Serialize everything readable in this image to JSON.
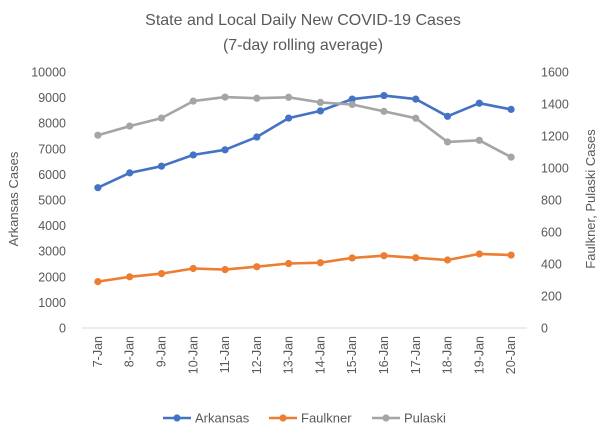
{
  "chart_data": {
    "type": "line",
    "title": "State and Local Daily New COVID-19 Cases",
    "subtitle": "(7-day rolling average)",
    "categories": [
      "7-Jan",
      "8-Jan",
      "9-Jan",
      "10-Jan",
      "11-Jan",
      "12-Jan",
      "13-Jan",
      "14-Jan",
      "15-Jan",
      "16-Jan",
      "17-Jan",
      "18-Jan",
      "19-Jan",
      "20-Jan"
    ],
    "y_left": {
      "label": "Arkansas Cases",
      "min": 0,
      "max": 10000,
      "step": 1000,
      "ticks": [
        "0",
        "1000",
        "2000",
        "3000",
        "4000",
        "5000",
        "6000",
        "7000",
        "8000",
        "9000",
        "10000"
      ]
    },
    "y_right": {
      "label": "Faulkner, Pulaski Cases",
      "min": 0,
      "max": 1600,
      "step": 200,
      "ticks": [
        "0",
        "200",
        "400",
        "600",
        "800",
        "1000",
        "1200",
        "1400",
        "1600"
      ]
    },
    "grid": false,
    "legend_position": "bottom",
    "series": [
      {
        "name": "Arkansas",
        "axis": "left",
        "color": "#4472C4",
        "values": [
          5480,
          6060,
          6320,
          6760,
          6960,
          7460,
          8200,
          8480,
          8940,
          9080,
          8940,
          8270,
          8780,
          8540
        ]
      },
      {
        "name": "Faulkner",
        "axis": "right",
        "color": "#ED7D31",
        "values": [
          290,
          320,
          340,
          372,
          365,
          383,
          403,
          408,
          438,
          452,
          439,
          425,
          463,
          456
        ]
      },
      {
        "name": "Pulaski",
        "axis": "right",
        "color": "#A5A5A5",
        "values": [
          1205,
          1262,
          1312,
          1418,
          1443,
          1436,
          1442,
          1410,
          1397,
          1354,
          1311,
          1163,
          1173,
          1068
        ]
      }
    ]
  }
}
